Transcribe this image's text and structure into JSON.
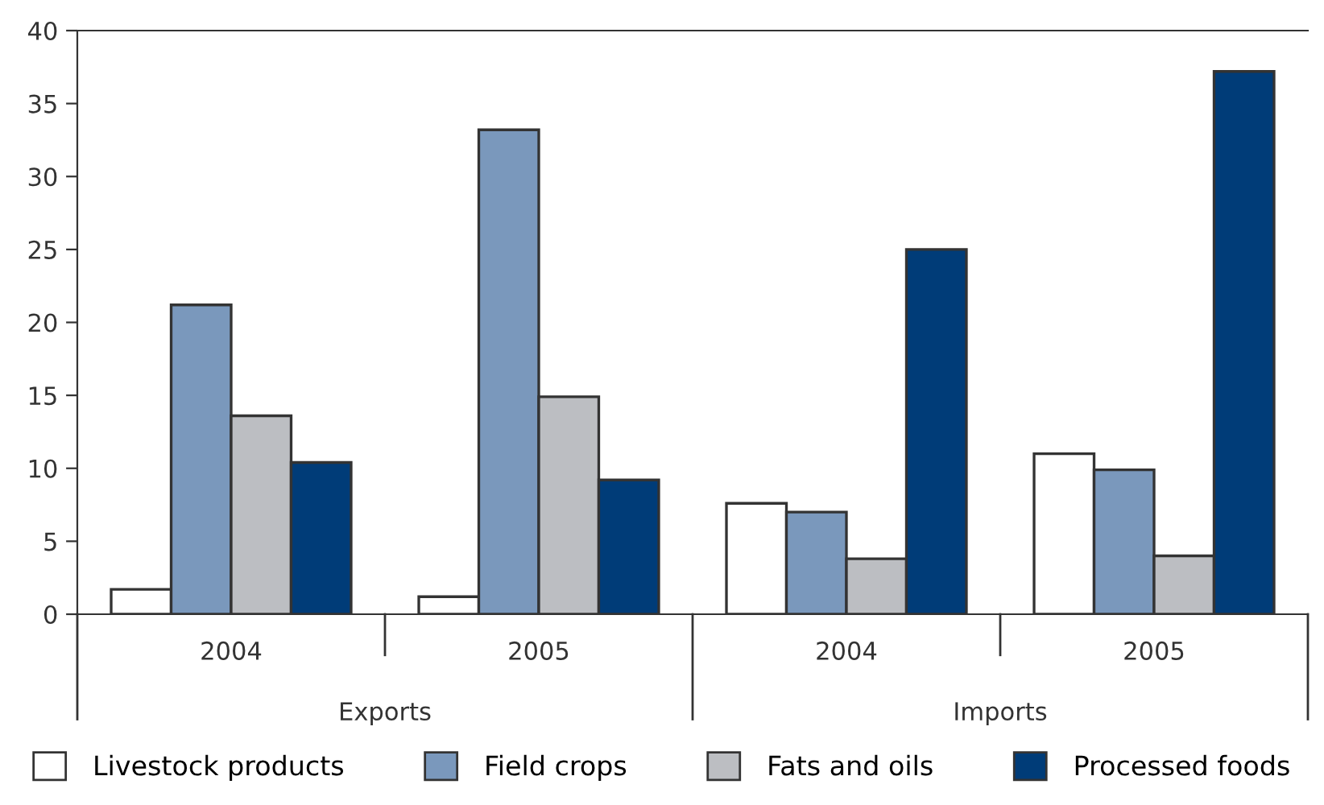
{
  "chart_data": {
    "type": "bar",
    "categories": [
      "2004",
      "2005",
      "2004",
      "2005"
    ],
    "series": [
      {
        "name": "Livestock products",
        "color": "#ffffff",
        "values": [
          1.7,
          1.2,
          7.6,
          11.0
        ]
      },
      {
        "name": "Field crops",
        "color": "#7a98bc",
        "values": [
          21.2,
          33.2,
          7.0,
          9.9
        ]
      },
      {
        "name": "Fats and oils",
        "color": "#bcbec2",
        "values": [
          13.6,
          14.9,
          3.8,
          4.0
        ]
      },
      {
        "name": "Processed foods",
        "color": "#003c78",
        "values": [
          10.4,
          9.2,
          25.0,
          37.2
        ]
      }
    ],
    "annotations": [
      "Exports",
      "Imports"
    ],
    "ylim": [
      0,
      40
    ],
    "yticks": [
      0,
      5,
      10,
      15,
      20,
      25,
      30,
      35,
      40
    ],
    "grid": false,
    "legend": "bottom"
  }
}
